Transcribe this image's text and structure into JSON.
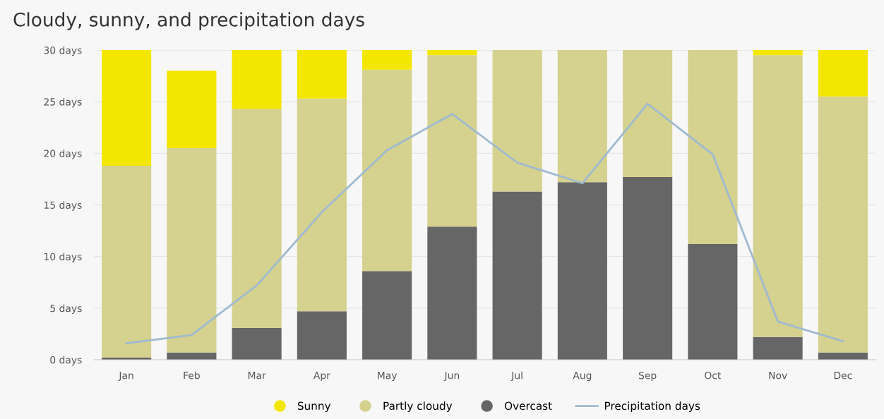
{
  "chart_data": {
    "type": "bar",
    "title": "Cloudy, sunny, and precipitation days",
    "stacked": true,
    "categories": [
      "Jan",
      "Feb",
      "Mar",
      "Apr",
      "May",
      "Jun",
      "Jul",
      "Aug",
      "Sep",
      "Oct",
      "Nov",
      "Dec"
    ],
    "series": [
      {
        "name": "Overcast",
        "color": "#666666",
        "values": [
          0.2,
          0.7,
          3.1,
          4.7,
          8.6,
          12.9,
          16.3,
          17.2,
          17.7,
          11.2,
          2.2,
          0.7
        ]
      },
      {
        "name": "Partly cloudy",
        "color": "#d5d18e",
        "values": [
          18.6,
          19.8,
          21.2,
          20.6,
          19.5,
          16.6,
          13.7,
          12.8,
          12.3,
          18.8,
          27.3,
          24.8
        ]
      },
      {
        "name": "Sunny",
        "color": "#f3e600",
        "values": [
          11.2,
          7.5,
          5.7,
          4.7,
          1.9,
          0.5,
          0,
          0,
          0,
          0,
          0.5,
          4.5
        ]
      },
      {
        "name": "Precipitation days",
        "type": "line",
        "color": "#9fbad0",
        "values": [
          1.6,
          2.4,
          7.2,
          14.3,
          20.3,
          23.8,
          19.1,
          17.1,
          24.8,
          19.9,
          3.7,
          1.8
        ]
      }
    ],
    "ylim": [
      0,
      30
    ],
    "yticks": [
      {
        "value": 0,
        "label": "0 days"
      },
      {
        "value": 5,
        "label": "5 days"
      },
      {
        "value": 10,
        "label": "10 days"
      },
      {
        "value": 15,
        "label": "15 days"
      },
      {
        "value": 20,
        "label": "20 days"
      },
      {
        "value": 25,
        "label": "25 days"
      },
      {
        "value": 30,
        "label": "30 days"
      }
    ],
    "grid": "y",
    "legend": "bottom"
  }
}
